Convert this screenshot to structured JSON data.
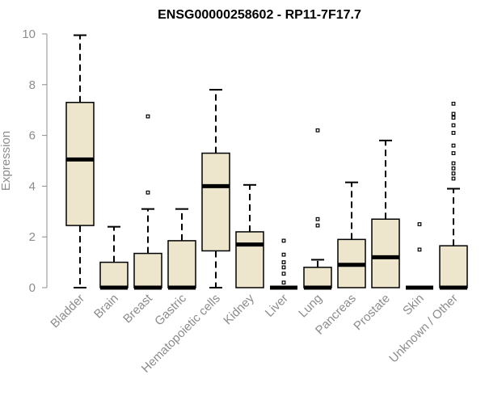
{
  "chart_data": {
    "type": "box",
    "title": "ENSG00000258602 - RP11-7F17.7",
    "xlabel": "",
    "ylabel": "Expression",
    "ylim": [
      0,
      10
    ],
    "yticks": [
      0,
      2,
      4,
      6,
      8,
      10
    ],
    "grid": false,
    "legend": "none",
    "categories": [
      "Bladder",
      "Brain",
      "Breast",
      "Gastric",
      "Hematopoietic cells",
      "Kidney",
      "Liver",
      "Lung",
      "Pancreas",
      "Prostate",
      "Skin",
      "Unknown / Other"
    ],
    "boxes": [
      {
        "category": "Bladder",
        "whisker_low": 0,
        "q1": 2.45,
        "median": 5.05,
        "q3": 7.3,
        "whisker_high": 9.95,
        "outliers": []
      },
      {
        "category": "Brain",
        "whisker_low": 0,
        "q1": 0,
        "median": 0,
        "q3": 1.0,
        "whisker_high": 2.4,
        "outliers": []
      },
      {
        "category": "Breast",
        "whisker_low": 0,
        "q1": 0,
        "median": 0,
        "q3": 1.35,
        "whisker_high": 3.1,
        "outliers": [
          3.75,
          6.75
        ]
      },
      {
        "category": "Gastric",
        "whisker_low": 0,
        "q1": 0,
        "median": 0,
        "q3": 1.85,
        "whisker_high": 3.1,
        "outliers": []
      },
      {
        "category": "Hematopoietic cells",
        "whisker_low": 0,
        "q1": 1.45,
        "median": 4.0,
        "q3": 5.3,
        "whisker_high": 7.8,
        "outliers": []
      },
      {
        "category": "Kidney",
        "whisker_low": 0,
        "q1": 0,
        "median": 1.7,
        "q3": 2.2,
        "whisker_high": 4.05,
        "outliers": []
      },
      {
        "category": "Liver",
        "whisker_low": 0,
        "q1": 0,
        "median": 0,
        "q3": 0,
        "whisker_high": 0,
        "outliers": [
          0.2,
          0.55,
          0.8,
          1.0,
          1.3,
          1.85
        ]
      },
      {
        "category": "Lung",
        "whisker_low": 0,
        "q1": 0,
        "median": 0,
        "q3": 0.8,
        "whisker_high": 1.1,
        "outliers": [
          2.45,
          2.7,
          6.2
        ]
      },
      {
        "category": "Pancreas",
        "whisker_low": 0,
        "q1": 0,
        "median": 0.9,
        "q3": 1.9,
        "whisker_high": 4.15,
        "outliers": []
      },
      {
        "category": "Prostate",
        "whisker_low": 0,
        "q1": 0,
        "median": 1.2,
        "q3": 2.7,
        "whisker_high": 5.8,
        "outliers": []
      },
      {
        "category": "Skin",
        "whisker_low": 0,
        "q1": 0,
        "median": 0,
        "q3": 0,
        "whisker_high": 0,
        "outliers": [
          1.5,
          2.5
        ]
      },
      {
        "category": "Unknown / Other",
        "whisker_low": 0,
        "q1": 0,
        "median": 0,
        "q3": 1.65,
        "whisker_high": 3.9,
        "outliers": [
          4.3,
          4.5,
          4.7,
          4.9,
          5.3,
          5.6,
          6.1,
          6.4,
          6.7,
          6.85,
          7.25
        ]
      }
    ],
    "colors": {
      "box_fill": "#ede6cc",
      "box_stroke": "#000000",
      "median": "#000000",
      "axis": "#8c8c8c",
      "text": "#8c8c8c",
      "title": "#000000"
    }
  }
}
